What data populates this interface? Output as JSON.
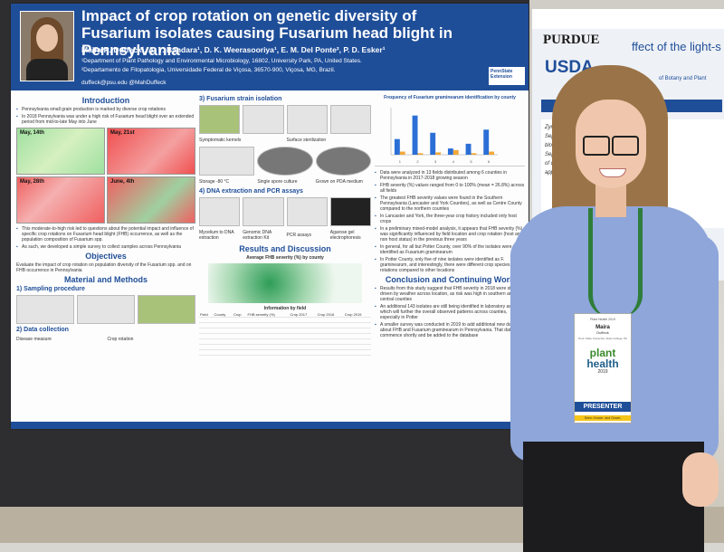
{
  "poster": {
    "title": "Impact of crop rotation on genetic diversity of Fusarium isolates causing Fusarium head blight in Pennsylvania",
    "authors": "Maira R. Duffeck¹, A. Y. Bandara¹, D. K. Weerasooriya¹, E. M. Del Ponte², P. D. Esker¹",
    "affiliation_1": "¹Department of Plant Pathology and Environmental Microbiology, 16802, University Park, PA, United States.",
    "affiliation_2": "²Departamento de Fitopatologia, Universidade Federal de Viçosa, 36570-900, Viçosa, MG, Brazil.",
    "contact": "duffeck@psu.edu   @MahDuffeck",
    "logo": "PennState Extension",
    "intro_heading": "Introduction",
    "intro_bullets": [
      "Pennsylvania small grain production is marked by diverse crop rotations",
      "In 2018 Pennsylvania was under a high risk of Fusarium head blight over an extended period from mid-to-late May into June"
    ],
    "map_labels": [
      "May, 14th",
      "May, 21st",
      "May, 28th",
      "June, 4th"
    ],
    "intro_bullets_2": [
      "This moderate-to-high risk led to questions about the potential impact and influence of specific crop rotations on Fusarium head blight (FHB) occurrence, as well as the population composition of Fusarium spp.",
      "As such, we developed a simple survey to collect samples across Pennsylvania"
    ],
    "objectives_heading": "Objectives",
    "objectives_text": "Evaluate the impact of crop rotation on population diversity of the Fusarium spp. and on FHB occurrence in Pennsylvania",
    "methods_heading": "Material and Methods",
    "sampling_heading": "1) Sampling procedure",
    "data_heading": "2) Data collection",
    "data_labels": [
      "Disease measure",
      "Crop rotation"
    ],
    "strain_heading": "3) Fusarium strain isolation",
    "strain_labels": [
      "Symptomatic kernels",
      "Surface sterilization",
      "Storage -80 °C",
      "Single spore culture",
      "Grown on PDA medium"
    ],
    "dna_heading": "4) DNA extraction and PCR assays",
    "dna_labels": [
      "Mycelium to DNA extraction",
      "Genomic DNA extraction Kit",
      "PCR assays",
      "Agarose gel electrophoresis"
    ],
    "results_heading": "Results and Discussion",
    "severity_heading": "Average FHB severity (%) by county",
    "info_heading": "Information by field",
    "table_headers": [
      "Field",
      "County",
      "Crop",
      "FHB severity (%)",
      "Crop 2017",
      "Crop 2016",
      "Crop 2015"
    ],
    "freq_heading": "Frequency of Fusarium graminearum identification by county",
    "right_bullets": [
      "Data were analyzed in 13 fields distributed among 6 counties in Pennsylvania in 2017-2018 growing season",
      "FHB severity (%) values ranged from 0 to 100% (mean = 26.8%) across all fields",
      "The greatest FHB severity values were found in the Southern Pennsylvania (Lancaster and York Counties), as well as Centre County compared to the northern counties",
      "In Lancaster and York, the three-year crop history included only host crops",
      "In a preliminary mixed-model analysis, it appears that FHB severity (%) was significantly influenced by field location and crop rotation (host and non host status) in the previous three years",
      "In general, for all but Potter County, over 90% of the isolates were identified as Fusarium graminearum",
      "In Potter County, only five of nine isolates were identified as F. graminearum, and interestingly, there were different crop species in the rotations compared to other locations"
    ],
    "conclusion_heading": "Conclusion and Continuing Work",
    "conclusion_bullets": [
      "Results from this study suggest that FHB severity in 2018 were strongly driven by weather across location, as risk was high in southern and central counties",
      "An additional 143 isolates are still being identified in laboratory assays which will further the overall observed patterns across counties, especially in Potter",
      "A smaller survey was conducted in 2019 to add additional new data about FHB and Fusarium graminearum in Pennsylvania. That data will commence shortly and be added to the database"
    ]
  },
  "chart_data": {
    "type": "bar",
    "title": "Frequency of Fusarium graminearum identification by county",
    "categories": [
      "1",
      "2",
      "3",
      "4",
      "5",
      "6"
    ],
    "series": [
      {
        "name": "",
        "values": [
          20,
          50,
          28,
          8,
          14,
          32
        ]
      },
      {
        "name": "",
        "values": [
          4,
          2,
          3,
          6,
          2,
          4
        ]
      }
    ],
    "ylim": [
      0,
      60
    ],
    "colors": [
      "#2b6fd6",
      "#f2a93b"
    ]
  },
  "poster2": {
    "university": "PURDUE",
    "agency": "USDA",
    "title_fragment": "ffect of the light-s",
    "sub_fragment": "of Botany and Plant",
    "text_lines": [
      "Zymosep",
      "Septoria",
      "blotch in",
      "Septoria l",
      "of dollars",
      "applicati"
    ]
  },
  "badge": {
    "meeting": "Plant Health 2019",
    "first_name": "Maira",
    "last_name": "Duffeck",
    "org": "Penn State University, State College, PA",
    "logo_line1": "plant",
    "logo_line2": "health",
    "year": "2019",
    "role": "PRESENTER",
    "tagline": "Seen. Known. and Grown."
  }
}
